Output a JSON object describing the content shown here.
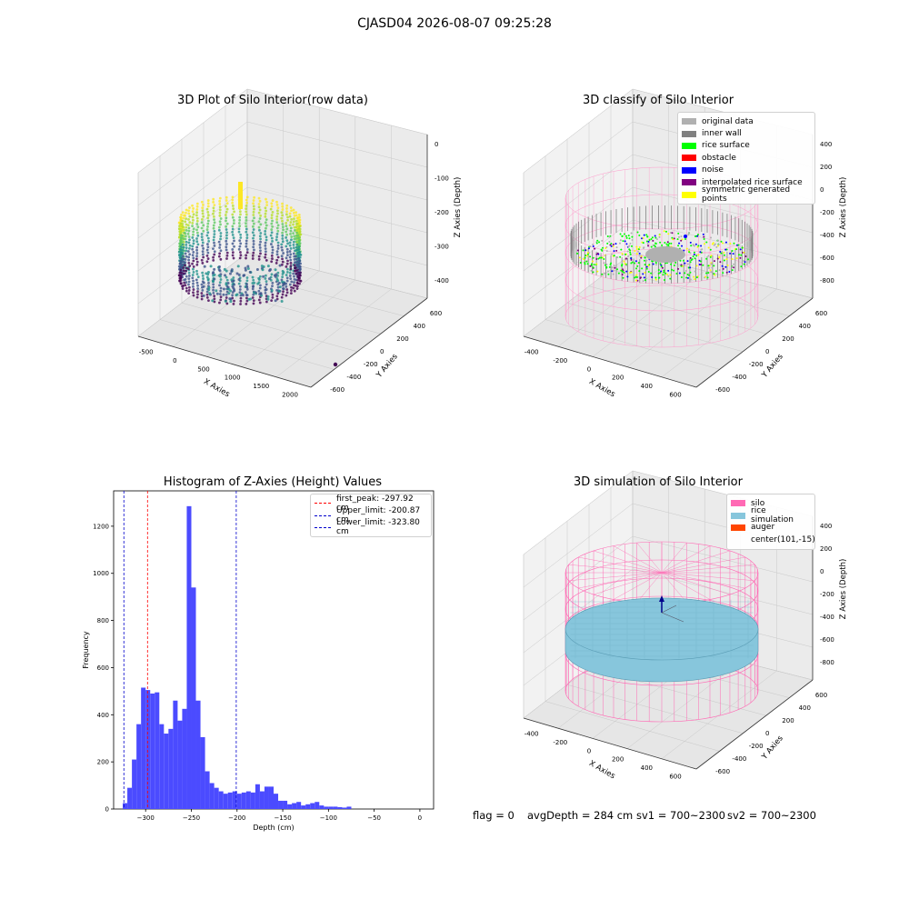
{
  "suptitle": "CJASD04 2026-08-07 09:25:28",
  "status_line": {
    "flag": "flag = 0",
    "avg_depth": "avgDepth = 284 cm",
    "sv1": "sv1 = 700~2300",
    "sv2": "sv2 = 700~2300"
  },
  "colors": {
    "hist_bar": "#4b4bff",
    "first_peak_line": "#ff0000",
    "limit_line": "#0000cc",
    "silo": "#ff69b4",
    "rice_simulation": "#87c6dc",
    "auger": "#ff4500",
    "original_data": "#b0b0b0",
    "inner_wall": "#808080",
    "rice_surface": "#00ff00",
    "obstacle": "#ff0000",
    "noise": "#0000ff",
    "interpolated_rice_surface": "#800080",
    "symmetric_generated_points": "#ffff00"
  },
  "chart_data": [
    {
      "type": "scatter",
      "subtype": "3d",
      "title": "3D Plot of Silo Interior(row data)",
      "xlabel": "X Axies",
      "ylabel": "Y Axies",
      "zlabel": "Z Axies (Depth)",
      "x_ticks": [
        "-500",
        "0",
        "500",
        "1000",
        "1500",
        "2000"
      ],
      "y_ticks": [
        "600",
        "400",
        "200",
        "0",
        "-200",
        "-400",
        "-600"
      ],
      "z_ticks": [
        "0",
        "-100",
        "-200",
        "-300",
        "-400"
      ],
      "colormap": "viridis"
    },
    {
      "type": "scatter",
      "subtype": "3d",
      "title": "3D classify of Silo Interior",
      "xlabel": "X Axies",
      "ylabel": "Y Axies",
      "zlabel": "Z Axies (Depth)",
      "x_ticks": [
        "-400",
        "-200",
        "0",
        "200",
        "400",
        "600"
      ],
      "y_ticks": [
        "600",
        "400",
        "200",
        "0",
        "-200",
        "-400",
        "-600"
      ],
      "z_ticks": [
        "400",
        "200",
        "0",
        "-200",
        "-400",
        "-600",
        "-800"
      ],
      "legend": [
        "original data",
        "inner wall",
        "rice surface",
        "obstacle",
        "noise",
        "interpolated rice surface",
        "symmetric generated points"
      ],
      "legend_position": "top-right"
    },
    {
      "type": "bar",
      "subtype": "histogram",
      "title": "Histogram of Z-Axies (Height) Values",
      "xlabel": "Depth (cm)",
      "ylabel": "Frequency",
      "xlim": [
        -335,
        15
      ],
      "ylim": [
        0,
        1350
      ],
      "x_ticks": [
        -300,
        -250,
        -200,
        -150,
        -100,
        -50,
        0
      ],
      "y_ticks": [
        0,
        200,
        400,
        600,
        800,
        1000,
        1200
      ],
      "bin_width": 5,
      "bin_start": -325,
      "values": [
        25,
        90,
        210,
        360,
        515,
        505,
        490,
        495,
        360,
        320,
        340,
        460,
        375,
        425,
        1285,
        940,
        460,
        305,
        160,
        110,
        90,
        75,
        65,
        70,
        75,
        65,
        70,
        75,
        70,
        105,
        75,
        95,
        95,
        65,
        35,
        35,
        20,
        25,
        30,
        15,
        20,
        25,
        30,
        15,
        10,
        10,
        10,
        8,
        6,
        10
      ],
      "vlines": [
        {
          "label": "first_peak: -297.92 cm",
          "x": -297.92,
          "color": "red"
        },
        {
          "label": "Upper_limit: -200.87 cm",
          "x": -200.87,
          "color": "blue"
        },
        {
          "label": "Lower_limit: -323.80 cm",
          "x": -323.8,
          "color": "blue"
        }
      ],
      "legend_position": "top-right"
    },
    {
      "type": "scatter",
      "subtype": "3d-surface",
      "title": "3D simulation of Silo Interior",
      "xlabel": "X Axies",
      "ylabel": "Y Axies",
      "zlabel": "Z Axies (Depth)",
      "x_ticks": [
        "-400",
        "-200",
        "0",
        "200",
        "400",
        "600"
      ],
      "y_ticks": [
        "600",
        "400",
        "200",
        "0",
        "-200",
        "-400",
        "-600"
      ],
      "z_ticks": [
        "400",
        "200",
        "0",
        "-200",
        "-400",
        "-600",
        "-800"
      ],
      "legend": [
        "silo",
        "rice simulation",
        "auger",
        "center(101,-15)"
      ],
      "legend_position": "top-right"
    }
  ]
}
